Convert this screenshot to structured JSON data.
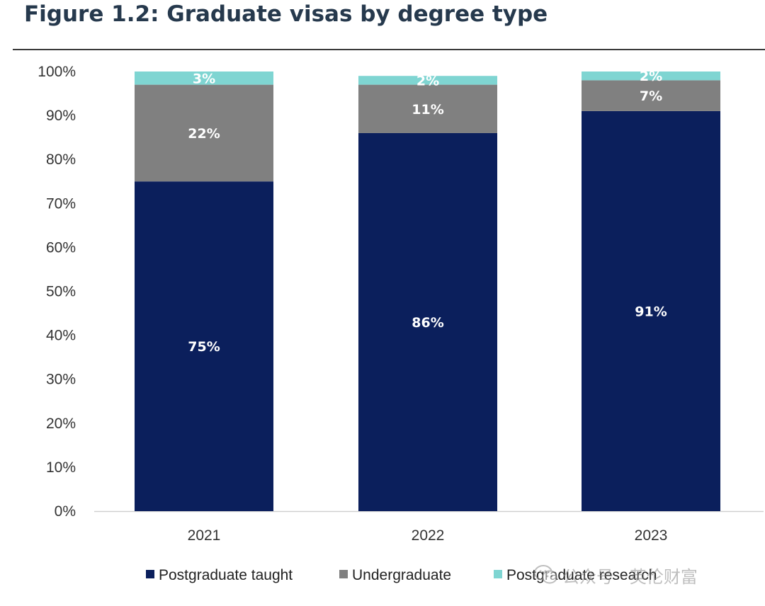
{
  "chart_data": {
    "type": "bar",
    "stacked": true,
    "title": "Figure 1.2: Graduate visas by degree type",
    "xlabel": "",
    "ylabel": "",
    "categories": [
      "2021",
      "2022",
      "2023"
    ],
    "ylim": [
      0,
      100
    ],
    "yticks": [
      "0%",
      "10%",
      "20%",
      "30%",
      "40%",
      "50%",
      "60%",
      "70%",
      "80%",
      "90%",
      "100%"
    ],
    "grid": false,
    "legend_position": "bottom",
    "series": [
      {
        "name": "Postgraduate taught",
        "color": "#0b1f5c",
        "values": [
          75,
          86,
          91
        ],
        "labels": [
          "75%",
          "86%",
          "91%"
        ]
      },
      {
        "name": "Undergraduate",
        "color": "#808080",
        "values": [
          22,
          11,
          7
        ],
        "labels": [
          "22%",
          "11%",
          "7%"
        ]
      },
      {
        "name": "Postgraduate research",
        "color": "#7fd5d2",
        "values": [
          3,
          2,
          2
        ],
        "labels": [
          "3%",
          "2%",
          "2%"
        ]
      }
    ]
  },
  "watermark": {
    "icon": "wechat-icon",
    "text": "公众号 · 英伦财富"
  }
}
